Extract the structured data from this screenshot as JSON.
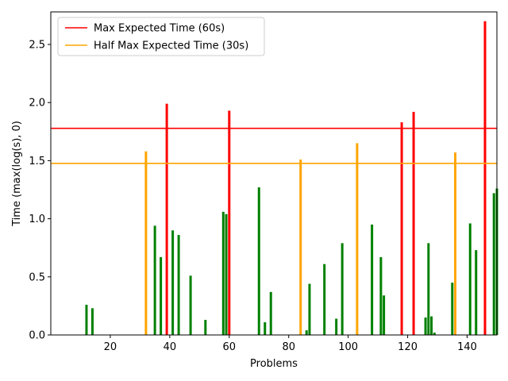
{
  "chart_data": {
    "type": "bar",
    "title": "",
    "xlabel": "Problems",
    "ylabel": "Time (max(log(s), 0)",
    "xlim": [
      0,
      150
    ],
    "ylim": [
      0,
      2.78
    ],
    "xticks": [
      20,
      40,
      60,
      80,
      100,
      120,
      140
    ],
    "yticks": [
      0.0,
      0.5,
      1.0,
      1.5,
      2.0,
      2.5
    ],
    "xtick_labels": [
      "20",
      "40",
      "60",
      "80",
      "100",
      "120",
      "140"
    ],
    "ytick_labels": [
      "0.0",
      "0.5",
      "1.0",
      "1.5",
      "2.0",
      "2.5"
    ],
    "grid": false,
    "legend_position": "top-left",
    "colors": {
      "fast": "#008000",
      "medium": "#ffa500",
      "slow": "#ff0000"
    },
    "reference_lines": [
      {
        "name": "Max Expected Time (60s)",
        "y": 1.778,
        "color": "#ff0000"
      },
      {
        "name": "Half Max Expected Time (30s)",
        "y": 1.477,
        "color": "#ffa500"
      }
    ],
    "bars": [
      {
        "x": 12,
        "value": 0.26,
        "color": "#008000"
      },
      {
        "x": 14,
        "value": 0.23,
        "color": "#008000"
      },
      {
        "x": 32,
        "value": 1.58,
        "color": "#ffa500"
      },
      {
        "x": 35,
        "value": 0.94,
        "color": "#008000"
      },
      {
        "x": 37,
        "value": 0.67,
        "color": "#008000"
      },
      {
        "x": 39,
        "value": 1.99,
        "color": "#ff0000"
      },
      {
        "x": 41,
        "value": 0.9,
        "color": "#008000"
      },
      {
        "x": 43,
        "value": 0.86,
        "color": "#008000"
      },
      {
        "x": 47,
        "value": 0.51,
        "color": "#008000"
      },
      {
        "x": 52,
        "value": 0.13,
        "color": "#008000"
      },
      {
        "x": 58,
        "value": 1.06,
        "color": "#008000"
      },
      {
        "x": 59,
        "value": 1.04,
        "color": "#008000"
      },
      {
        "x": 60,
        "value": 1.93,
        "color": "#ff0000"
      },
      {
        "x": 70,
        "value": 1.27,
        "color": "#008000"
      },
      {
        "x": 72,
        "value": 0.11,
        "color": "#008000"
      },
      {
        "x": 74,
        "value": 0.37,
        "color": "#008000"
      },
      {
        "x": 84,
        "value": 1.51,
        "color": "#ffa500"
      },
      {
        "x": 86,
        "value": 0.04,
        "color": "#008000"
      },
      {
        "x": 87,
        "value": 0.44,
        "color": "#008000"
      },
      {
        "x": 92,
        "value": 0.61,
        "color": "#008000"
      },
      {
        "x": 96,
        "value": 0.14,
        "color": "#008000"
      },
      {
        "x": 98,
        "value": 0.79,
        "color": "#008000"
      },
      {
        "x": 103,
        "value": 1.65,
        "color": "#ffa500"
      },
      {
        "x": 108,
        "value": 0.95,
        "color": "#008000"
      },
      {
        "x": 111,
        "value": 0.67,
        "color": "#008000"
      },
      {
        "x": 112,
        "value": 0.34,
        "color": "#008000"
      },
      {
        "x": 118,
        "value": 1.83,
        "color": "#ff0000"
      },
      {
        "x": 122,
        "value": 1.92,
        "color": "#ff0000"
      },
      {
        "x": 126,
        "value": 0.15,
        "color": "#008000"
      },
      {
        "x": 127,
        "value": 0.79,
        "color": "#008000"
      },
      {
        "x": 128,
        "value": 0.16,
        "color": "#008000"
      },
      {
        "x": 129,
        "value": 0.02,
        "color": "#008000"
      },
      {
        "x": 135,
        "value": 0.45,
        "color": "#008000"
      },
      {
        "x": 136,
        "value": 1.57,
        "color": "#ffa500"
      },
      {
        "x": 141,
        "value": 0.96,
        "color": "#008000"
      },
      {
        "x": 143,
        "value": 0.73,
        "color": "#008000"
      },
      {
        "x": 146,
        "value": 2.7,
        "color": "#ff0000"
      },
      {
        "x": 149,
        "value": 1.22,
        "color": "#008000"
      },
      {
        "x": 150,
        "value": 1.26,
        "color": "#008000"
      }
    ]
  }
}
